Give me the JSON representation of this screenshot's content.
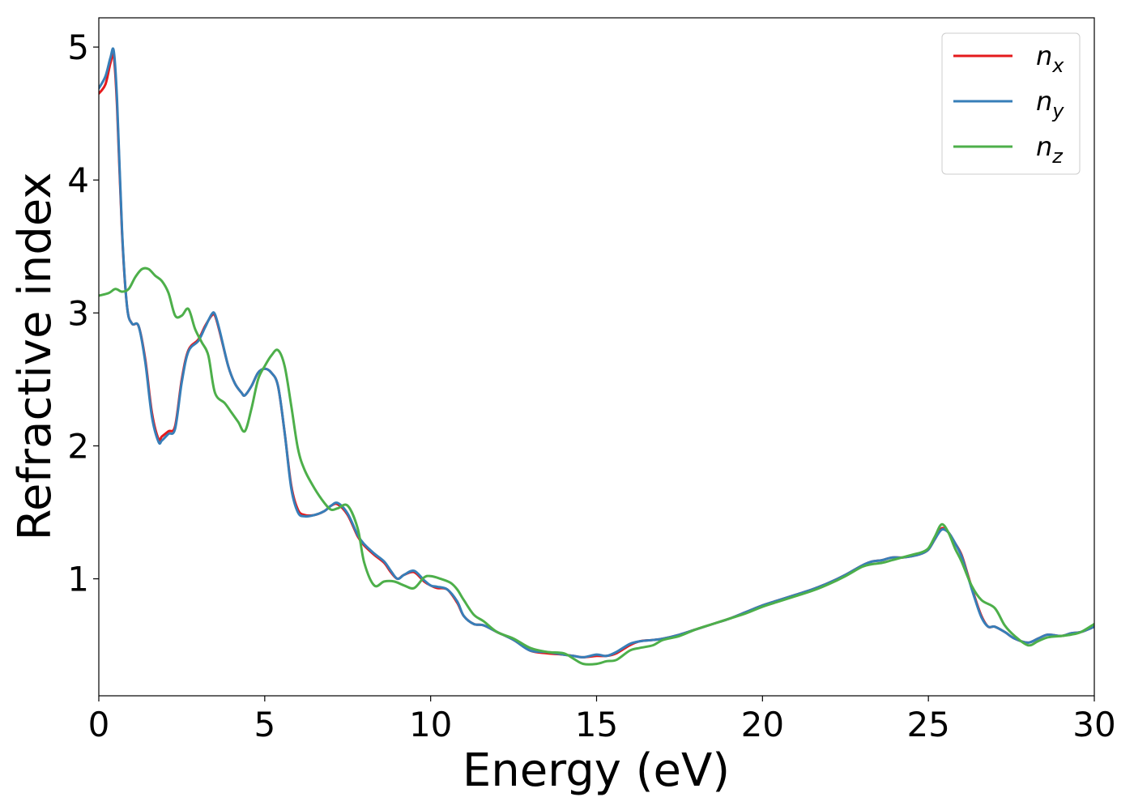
{
  "chart_data": {
    "type": "line",
    "title": "",
    "xlabel": "Energy (eV)",
    "ylabel": "Refractive index",
    "xlim": [
      0,
      30
    ],
    "ylim": [
      0.12,
      5.22
    ],
    "xticks": [
      0,
      5,
      10,
      15,
      20,
      25,
      30
    ],
    "xtick_labels": [
      "0",
      "5",
      "10",
      "15",
      "20",
      "25",
      "30"
    ],
    "yticks": [
      1,
      2,
      3,
      4,
      5
    ],
    "ytick_labels": [
      "1",
      "2",
      "3",
      "4",
      "5"
    ],
    "grid": false,
    "legend_position": "top-right",
    "series": [
      {
        "name": "n_x",
        "label_base": "n",
        "label_sub": "x",
        "color": "#e41a1c",
        "x": [
          0,
          0.2,
          0.35,
          0.45,
          0.55,
          0.7,
          0.85,
          1.0,
          1.2,
          1.4,
          1.6,
          1.8,
          1.9,
          2.1,
          2.3,
          2.5,
          2.7,
          3.0,
          3.2,
          3.4,
          3.5,
          3.65,
          3.9,
          4.1,
          4.3,
          4.4,
          4.6,
          4.8,
          5.0,
          5.2,
          5.4,
          5.6,
          5.8,
          6.0,
          6.2,
          6.5,
          6.8,
          7.0,
          7.2,
          7.5,
          7.8,
          8.0,
          8.3,
          8.6,
          8.8,
          9.0,
          9.2,
          9.5,
          9.8,
          10.0,
          10.2,
          10.5,
          10.8,
          11.0,
          11.3,
          11.6,
          12.0,
          12.5,
          13.0,
          13.5,
          14.0,
          14.3,
          14.6,
          15.0,
          15.3,
          15.6,
          16.0,
          16.3,
          16.7,
          17.0,
          17.5,
          18.0,
          18.5,
          19.0,
          19.5,
          20.0,
          20.5,
          21.0,
          21.5,
          22.0,
          22.5,
          23.0,
          23.3,
          23.6,
          23.9,
          24.2,
          24.5,
          24.8,
          25.0,
          25.2,
          25.4,
          25.6,
          25.8,
          26.0,
          26.2,
          26.4,
          26.6,
          26.8,
          27.0,
          27.3,
          27.6,
          28.0,
          28.3,
          28.6,
          29.0,
          29.3,
          29.6,
          30.0
        ],
        "y": [
          4.65,
          4.72,
          4.88,
          4.93,
          4.55,
          3.6,
          3.05,
          2.92,
          2.9,
          2.65,
          2.25,
          2.05,
          2.07,
          2.11,
          2.15,
          2.5,
          2.72,
          2.8,
          2.9,
          2.98,
          2.98,
          2.85,
          2.6,
          2.47,
          2.4,
          2.38,
          2.45,
          2.55,
          2.58,
          2.55,
          2.45,
          2.1,
          1.7,
          1.52,
          1.48,
          1.48,
          1.51,
          1.55,
          1.56,
          1.48,
          1.32,
          1.25,
          1.18,
          1.12,
          1.05,
          1.0,
          1.03,
          1.05,
          0.98,
          0.95,
          0.93,
          0.92,
          0.82,
          0.72,
          0.66,
          0.65,
          0.6,
          0.54,
          0.46,
          0.44,
          0.43,
          0.42,
          0.41,
          0.42,
          0.42,
          0.44,
          0.5,
          0.53,
          0.54,
          0.55,
          0.58,
          0.62,
          0.66,
          0.7,
          0.75,
          0.8,
          0.84,
          0.88,
          0.92,
          0.97,
          1.03,
          1.1,
          1.13,
          1.14,
          1.16,
          1.16,
          1.17,
          1.19,
          1.22,
          1.3,
          1.38,
          1.35,
          1.27,
          1.18,
          1.02,
          0.86,
          0.72,
          0.64,
          0.64,
          0.6,
          0.55,
          0.52,
          0.55,
          0.58,
          0.57,
          0.59,
          0.6,
          0.64
        ]
      },
      {
        "name": "n_y",
        "label_base": "n",
        "label_sub": "y",
        "color": "#377eb8",
        "x": [
          0,
          0.2,
          0.35,
          0.45,
          0.55,
          0.7,
          0.85,
          1.0,
          1.2,
          1.4,
          1.6,
          1.8,
          1.9,
          2.1,
          2.3,
          2.5,
          2.7,
          3.0,
          3.2,
          3.4,
          3.5,
          3.65,
          3.9,
          4.1,
          4.3,
          4.4,
          4.6,
          4.8,
          5.0,
          5.2,
          5.4,
          5.6,
          5.8,
          6.0,
          6.2,
          6.5,
          6.8,
          7.0,
          7.2,
          7.5,
          7.8,
          8.0,
          8.3,
          8.6,
          8.8,
          9.0,
          9.2,
          9.5,
          9.8,
          10.0,
          10.2,
          10.5,
          10.8,
          11.0,
          11.3,
          11.6,
          12.0,
          12.5,
          13.0,
          13.5,
          14.0,
          14.3,
          14.6,
          15.0,
          15.3,
          15.6,
          16.0,
          16.3,
          16.7,
          17.0,
          17.5,
          18.0,
          18.5,
          19.0,
          19.5,
          20.0,
          20.5,
          21.0,
          21.5,
          22.0,
          22.5,
          23.0,
          23.3,
          23.6,
          23.9,
          24.2,
          24.5,
          24.8,
          25.0,
          25.2,
          25.4,
          25.6,
          25.8,
          26.0,
          26.2,
          26.4,
          26.6,
          26.8,
          27.0,
          27.3,
          27.6,
          28.0,
          28.3,
          28.6,
          29.0,
          29.3,
          29.6,
          30.0
        ],
        "y": [
          4.69,
          4.78,
          4.92,
          4.97,
          4.6,
          3.62,
          3.05,
          2.92,
          2.9,
          2.63,
          2.22,
          2.03,
          2.04,
          2.09,
          2.13,
          2.48,
          2.71,
          2.79,
          2.89,
          2.99,
          2.99,
          2.86,
          2.6,
          2.47,
          2.4,
          2.38,
          2.45,
          2.55,
          2.58,
          2.55,
          2.45,
          2.1,
          1.68,
          1.5,
          1.47,
          1.48,
          1.51,
          1.55,
          1.57,
          1.49,
          1.33,
          1.26,
          1.19,
          1.13,
          1.06,
          1.0,
          1.03,
          1.06,
          0.99,
          0.95,
          0.94,
          0.92,
          0.83,
          0.72,
          0.66,
          0.65,
          0.6,
          0.54,
          0.46,
          0.45,
          0.43,
          0.42,
          0.41,
          0.43,
          0.42,
          0.45,
          0.51,
          0.53,
          0.54,
          0.55,
          0.58,
          0.62,
          0.66,
          0.7,
          0.75,
          0.8,
          0.84,
          0.88,
          0.92,
          0.97,
          1.03,
          1.1,
          1.13,
          1.14,
          1.16,
          1.16,
          1.17,
          1.19,
          1.22,
          1.3,
          1.37,
          1.35,
          1.27,
          1.17,
          1.01,
          0.85,
          0.71,
          0.64,
          0.64,
          0.6,
          0.55,
          0.52,
          0.55,
          0.58,
          0.57,
          0.59,
          0.6,
          0.64
        ]
      },
      {
        "name": "n_z",
        "label_base": "n",
        "label_sub": "z",
        "color": "#4daf4a",
        "x": [
          0,
          0.3,
          0.5,
          0.7,
          0.9,
          1.1,
          1.3,
          1.5,
          1.7,
          1.9,
          2.1,
          2.3,
          2.5,
          2.7,
          2.9,
          3.1,
          3.3,
          3.5,
          3.8,
          4.0,
          4.2,
          4.4,
          4.6,
          4.8,
          5.0,
          5.2,
          5.4,
          5.6,
          5.8,
          6.0,
          6.2,
          6.5,
          6.8,
          7.0,
          7.2,
          7.5,
          7.8,
          8.0,
          8.3,
          8.6,
          8.9,
          9.2,
          9.5,
          9.8,
          10.0,
          10.3,
          10.6,
          10.8,
          11.0,
          11.3,
          11.6,
          12.0,
          12.5,
          13.0,
          13.5,
          14.0,
          14.3,
          14.6,
          15.0,
          15.3,
          15.6,
          16.0,
          16.3,
          16.7,
          17.0,
          17.5,
          18.0,
          18.5,
          19.0,
          19.5,
          20.0,
          20.5,
          21.0,
          21.5,
          22.0,
          22.5,
          23.0,
          23.3,
          23.6,
          23.9,
          24.2,
          24.5,
          24.8,
          25.0,
          25.2,
          25.4,
          25.6,
          25.8,
          26.0,
          26.3,
          26.6,
          27.0,
          27.3,
          27.6,
          28.0,
          28.3,
          28.6,
          29.0,
          29.3,
          29.6,
          30.0
        ],
        "y": [
          3.13,
          3.15,
          3.18,
          3.16,
          3.18,
          3.27,
          3.33,
          3.33,
          3.28,
          3.24,
          3.15,
          2.98,
          2.98,
          3.03,
          2.88,
          2.78,
          2.68,
          2.4,
          2.32,
          2.25,
          2.18,
          2.11,
          2.28,
          2.5,
          2.6,
          2.68,
          2.72,
          2.6,
          2.3,
          1.98,
          1.82,
          1.68,
          1.57,
          1.52,
          1.53,
          1.55,
          1.38,
          1.12,
          0.95,
          0.98,
          0.98,
          0.95,
          0.93,
          1.01,
          1.02,
          1.0,
          0.97,
          0.92,
          0.84,
          0.73,
          0.68,
          0.6,
          0.55,
          0.48,
          0.45,
          0.44,
          0.4,
          0.36,
          0.36,
          0.38,
          0.39,
          0.46,
          0.48,
          0.5,
          0.54,
          0.57,
          0.62,
          0.66,
          0.7,
          0.74,
          0.79,
          0.83,
          0.87,
          0.91,
          0.96,
          1.02,
          1.09,
          1.11,
          1.12,
          1.14,
          1.16,
          1.18,
          1.2,
          1.23,
          1.32,
          1.41,
          1.35,
          1.23,
          1.13,
          0.95,
          0.84,
          0.78,
          0.65,
          0.57,
          0.5,
          0.53,
          0.56,
          0.57,
          0.58,
          0.6,
          0.66
        ]
      }
    ]
  }
}
